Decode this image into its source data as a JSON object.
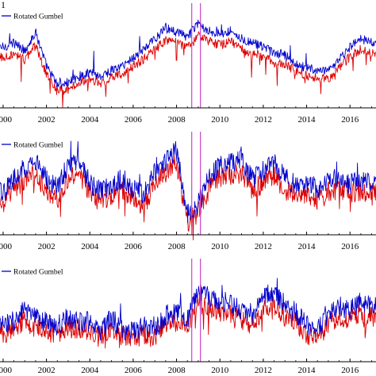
{
  "chart_data": [
    {
      "type": "line",
      "panel_label": "1",
      "x_range": [
        1999.6,
        2017.2
      ],
      "x_ticks": [
        "2000",
        "2002",
        "2004",
        "2006",
        "2008",
        "2010",
        "2012",
        "2014",
        "2016"
      ],
      "x_tick_values": [
        2000,
        2002,
        2004,
        2006,
        2008,
        2010,
        2012,
        2014,
        2016
      ],
      "y_range": [
        0,
        1
      ],
      "vertical_markers": [
        2008.7,
        2009.1
      ],
      "legend": {
        "position": "top-left",
        "entries": [
          {
            "name": "Rotated Gumbel",
            "color": "#0000cc"
          }
        ]
      },
      "series": [
        {
          "name": "Rotated Gumbel",
          "color": "#0000cc",
          "x": [
            1999.6,
            2000.0,
            2000.5,
            2001.0,
            2001.5,
            2002.0,
            2002.5,
            2003.0,
            2003.5,
            2004.0,
            2004.5,
            2005.0,
            2005.5,
            2006.0,
            2006.5,
            2007.0,
            2007.5,
            2008.0,
            2008.5,
            2009.0,
            2009.5,
            2010.0,
            2010.5,
            2011.0,
            2011.5,
            2012.0,
            2012.5,
            2013.0,
            2013.5,
            2014.0,
            2014.5,
            2015.0,
            2015.5,
            2016.0,
            2016.5,
            2017.0
          ],
          "values": [
            0.6,
            0.58,
            0.62,
            0.55,
            0.72,
            0.4,
            0.22,
            0.24,
            0.3,
            0.34,
            0.3,
            0.36,
            0.4,
            0.48,
            0.56,
            0.66,
            0.76,
            0.72,
            0.68,
            0.8,
            0.74,
            0.7,
            0.74,
            0.66,
            0.62,
            0.58,
            0.52,
            0.5,
            0.42,
            0.38,
            0.36,
            0.34,
            0.46,
            0.58,
            0.66,
            0.62
          ]
        },
        {
          "name": "",
          "color": "#dd0000",
          "x": [
            1999.6,
            2000.0,
            2000.5,
            2001.0,
            2001.5,
            2002.0,
            2002.5,
            2003.0,
            2003.5,
            2004.0,
            2004.5,
            2005.0,
            2005.5,
            2006.0,
            2006.5,
            2007.0,
            2007.5,
            2008.0,
            2008.5,
            2009.0,
            2009.5,
            2010.0,
            2010.5,
            2011.0,
            2011.5,
            2012.0,
            2012.5,
            2013.0,
            2013.5,
            2014.0,
            2014.5,
            2015.0,
            2015.5,
            2016.0,
            2016.5,
            2017.0
          ],
          "values": [
            0.5,
            0.48,
            0.52,
            0.46,
            0.6,
            0.32,
            0.16,
            0.18,
            0.24,
            0.27,
            0.24,
            0.29,
            0.33,
            0.4,
            0.47,
            0.56,
            0.65,
            0.62,
            0.58,
            0.69,
            0.64,
            0.6,
            0.64,
            0.56,
            0.52,
            0.49,
            0.43,
            0.42,
            0.35,
            0.31,
            0.29,
            0.28,
            0.38,
            0.49,
            0.56,
            0.52
          ]
        }
      ]
    },
    {
      "type": "line",
      "panel_label": "",
      "x_range": [
        1999.6,
        2017.2
      ],
      "x_ticks": [
        "2000",
        "2002",
        "2004",
        "2006",
        "2008",
        "2010",
        "2012",
        "2014",
        "2016"
      ],
      "x_tick_values": [
        2000,
        2002,
        2004,
        2006,
        2008,
        2010,
        2012,
        2014,
        2016
      ],
      "y_range": [
        0,
        1
      ],
      "vertical_markers": [
        2008.7,
        2009.1
      ],
      "legend": {
        "position": "top-left",
        "entries": [
          {
            "name": "Rotated Gumbel",
            "color": "#0000cc"
          }
        ]
      },
      "series": [
        {
          "name": "Rotated Gumbel",
          "color": "#0000cc",
          "x": [
            1999.6,
            2000.0,
            2000.5,
            2001.0,
            2001.5,
            2002.0,
            2002.5,
            2003.0,
            2003.5,
            2004.0,
            2004.5,
            2005.0,
            2005.5,
            2006.0,
            2006.5,
            2007.0,
            2007.5,
            2008.0,
            2008.5,
            2009.0,
            2009.5,
            2010.0,
            2010.5,
            2011.0,
            2011.5,
            2012.0,
            2012.5,
            2013.0,
            2013.5,
            2014.0,
            2014.5,
            2015.0,
            2015.5,
            2016.0,
            2016.5,
            2017.0
          ],
          "values": [
            0.45,
            0.4,
            0.55,
            0.65,
            0.7,
            0.55,
            0.45,
            0.68,
            0.72,
            0.5,
            0.42,
            0.48,
            0.55,
            0.45,
            0.38,
            0.62,
            0.72,
            0.82,
            0.2,
            0.3,
            0.55,
            0.68,
            0.7,
            0.72,
            0.55,
            0.62,
            0.7,
            0.55,
            0.48,
            0.5,
            0.45,
            0.52,
            0.55,
            0.5,
            0.52,
            0.5
          ]
        },
        {
          "name": "",
          "color": "#dd0000",
          "x": [
            1999.6,
            2000.0,
            2000.5,
            2001.0,
            2001.5,
            2002.0,
            2002.5,
            2003.0,
            2003.5,
            2004.0,
            2004.5,
            2005.0,
            2005.5,
            2006.0,
            2006.5,
            2007.0,
            2007.5,
            2008.0,
            2008.5,
            2009.0,
            2009.5,
            2010.0,
            2010.5,
            2011.0,
            2011.5,
            2012.0,
            2012.5,
            2013.0,
            2013.5,
            2014.0,
            2014.5,
            2015.0,
            2015.5,
            2016.0,
            2016.5,
            2017.0
          ],
          "values": [
            0.36,
            0.3,
            0.44,
            0.54,
            0.58,
            0.44,
            0.34,
            0.56,
            0.6,
            0.4,
            0.32,
            0.38,
            0.44,
            0.36,
            0.28,
            0.5,
            0.6,
            0.7,
            0.12,
            0.22,
            0.44,
            0.56,
            0.58,
            0.6,
            0.44,
            0.5,
            0.58,
            0.44,
            0.38,
            0.4,
            0.36,
            0.42,
            0.44,
            0.4,
            0.42,
            0.4
          ]
        }
      ]
    },
    {
      "type": "line",
      "panel_label": "",
      "x_range": [
        1999.6,
        2017.2
      ],
      "x_ticks": [
        "2000",
        "2002",
        "2004",
        "2006",
        "2008",
        "2010",
        "2012",
        "2014",
        "2016"
      ],
      "x_tick_values": [
        2000,
        2002,
        2004,
        2006,
        2008,
        2010,
        2012,
        2014,
        2016
      ],
      "y_range": [
        0,
        1
      ],
      "vertical_markers": [
        2008.7,
        2009.1
      ],
      "legend": {
        "position": "top-left",
        "entries": [
          {
            "name": "Rotated Gumbel",
            "color": "#0000cc"
          }
        ]
      },
      "series": [
        {
          "name": "Rotated Gumbel",
          "color": "#0000cc",
          "x": [
            1999.6,
            2000.0,
            2000.5,
            2001.0,
            2001.5,
            2002.0,
            2002.5,
            2003.0,
            2003.5,
            2004.0,
            2004.5,
            2005.0,
            2005.5,
            2006.0,
            2006.5,
            2007.0,
            2007.5,
            2008.0,
            2008.5,
            2009.0,
            2009.5,
            2010.0,
            2010.5,
            2011.0,
            2011.5,
            2012.0,
            2012.5,
            2013.0,
            2013.5,
            2014.0,
            2014.5,
            2015.0,
            2015.5,
            2016.0,
            2016.5,
            2017.0
          ],
          "values": [
            0.45,
            0.35,
            0.4,
            0.5,
            0.42,
            0.38,
            0.35,
            0.42,
            0.4,
            0.38,
            0.3,
            0.42,
            0.32,
            0.28,
            0.35,
            0.3,
            0.45,
            0.48,
            0.4,
            0.7,
            0.62,
            0.6,
            0.55,
            0.5,
            0.45,
            0.62,
            0.68,
            0.55,
            0.48,
            0.35,
            0.3,
            0.45,
            0.55,
            0.5,
            0.58,
            0.55
          ]
        },
        {
          "name": "",
          "color": "#dd0000",
          "x": [
            1999.6,
            2000.0,
            2000.5,
            2001.0,
            2001.5,
            2002.0,
            2002.5,
            2003.0,
            2003.5,
            2004.0,
            2004.5,
            2005.0,
            2005.5,
            2006.0,
            2006.5,
            2007.0,
            2007.5,
            2008.0,
            2008.5,
            2009.0,
            2009.5,
            2010.0,
            2010.5,
            2011.0,
            2011.5,
            2012.0,
            2012.5,
            2013.0,
            2013.5,
            2014.0,
            2014.5,
            2015.0,
            2015.5,
            2016.0,
            2016.5,
            2017.0
          ],
          "values": [
            0.36,
            0.27,
            0.32,
            0.4,
            0.33,
            0.3,
            0.27,
            0.33,
            0.32,
            0.3,
            0.23,
            0.33,
            0.25,
            0.21,
            0.27,
            0.23,
            0.36,
            0.38,
            0.32,
            0.58,
            0.51,
            0.49,
            0.45,
            0.4,
            0.36,
            0.5,
            0.56,
            0.44,
            0.38,
            0.27,
            0.23,
            0.36,
            0.45,
            0.4,
            0.47,
            0.45
          ]
        }
      ]
    }
  ],
  "colors": {
    "series_blue": "#0000cc",
    "series_red": "#dd0000",
    "marker": "#cc44cc"
  }
}
